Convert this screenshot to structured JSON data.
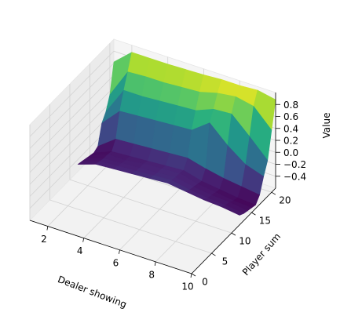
{
  "chart_data": {
    "type": "surface3d",
    "title": "",
    "xlabel": "Dealer showing",
    "ylabel": "Player sum",
    "zlabel": "Value",
    "xlim": [
      1,
      10
    ],
    "ylim": [
      0,
      21
    ],
    "zlim": [
      -0.6,
      1.0
    ],
    "xticks": [
      2,
      4,
      6,
      8,
      10
    ],
    "yticks": [
      0,
      5,
      10,
      15,
      20
    ],
    "zticks": [
      -0.4,
      -0.2,
      0.0,
      0.2,
      0.4,
      0.6,
      0.8
    ],
    "zticklabels": [
      "−0.4",
      "−0.2",
      "0.0",
      "0.2",
      "0.4",
      "0.6",
      "0.8"
    ],
    "colormap": "viridis",
    "grid": true,
    "x": [
      1,
      2,
      3,
      4,
      5,
      6,
      7,
      8,
      9,
      10
    ],
    "y": [
      12,
      13,
      14,
      15,
      16,
      17,
      18,
      19,
      20,
      21
    ],
    "z": [
      [
        -0.48,
        -0.38,
        -0.36,
        -0.34,
        -0.32,
        -0.3,
        -0.34,
        -0.38,
        -0.4,
        -0.44
      ],
      [
        -0.5,
        -0.4,
        -0.38,
        -0.36,
        -0.34,
        -0.32,
        -0.38,
        -0.42,
        -0.44,
        -0.48
      ],
      [
        -0.52,
        -0.42,
        -0.4,
        -0.38,
        -0.36,
        -0.34,
        -0.4,
        -0.44,
        -0.46,
        -0.5
      ],
      [
        -0.54,
        -0.42,
        -0.42,
        -0.38,
        -0.36,
        -0.34,
        -0.42,
        -0.46,
        -0.5,
        -0.52
      ],
      [
        -0.56,
        -0.44,
        -0.42,
        -0.4,
        -0.38,
        -0.36,
        -0.44,
        -0.48,
        -0.52,
        -0.54
      ],
      [
        -0.52,
        -0.3,
        -0.28,
        -0.26,
        -0.24,
        -0.22,
        -0.3,
        -0.36,
        -0.4,
        -0.44
      ],
      [
        -0.2,
        0.1,
        0.12,
        0.14,
        0.16,
        0.18,
        0.4,
        0.12,
        -0.1,
        -0.2
      ],
      [
        -0.08,
        0.38,
        0.38,
        0.4,
        0.42,
        0.44,
        0.56,
        0.58,
        0.3,
        0.0
      ],
      [
        0.14,
        0.62,
        0.64,
        0.64,
        0.66,
        0.68,
        0.76,
        0.8,
        0.74,
        0.44
      ],
      [
        0.62,
        0.88,
        0.88,
        0.88,
        0.89,
        0.9,
        0.92,
        0.92,
        0.94,
        0.88
      ]
    ]
  }
}
